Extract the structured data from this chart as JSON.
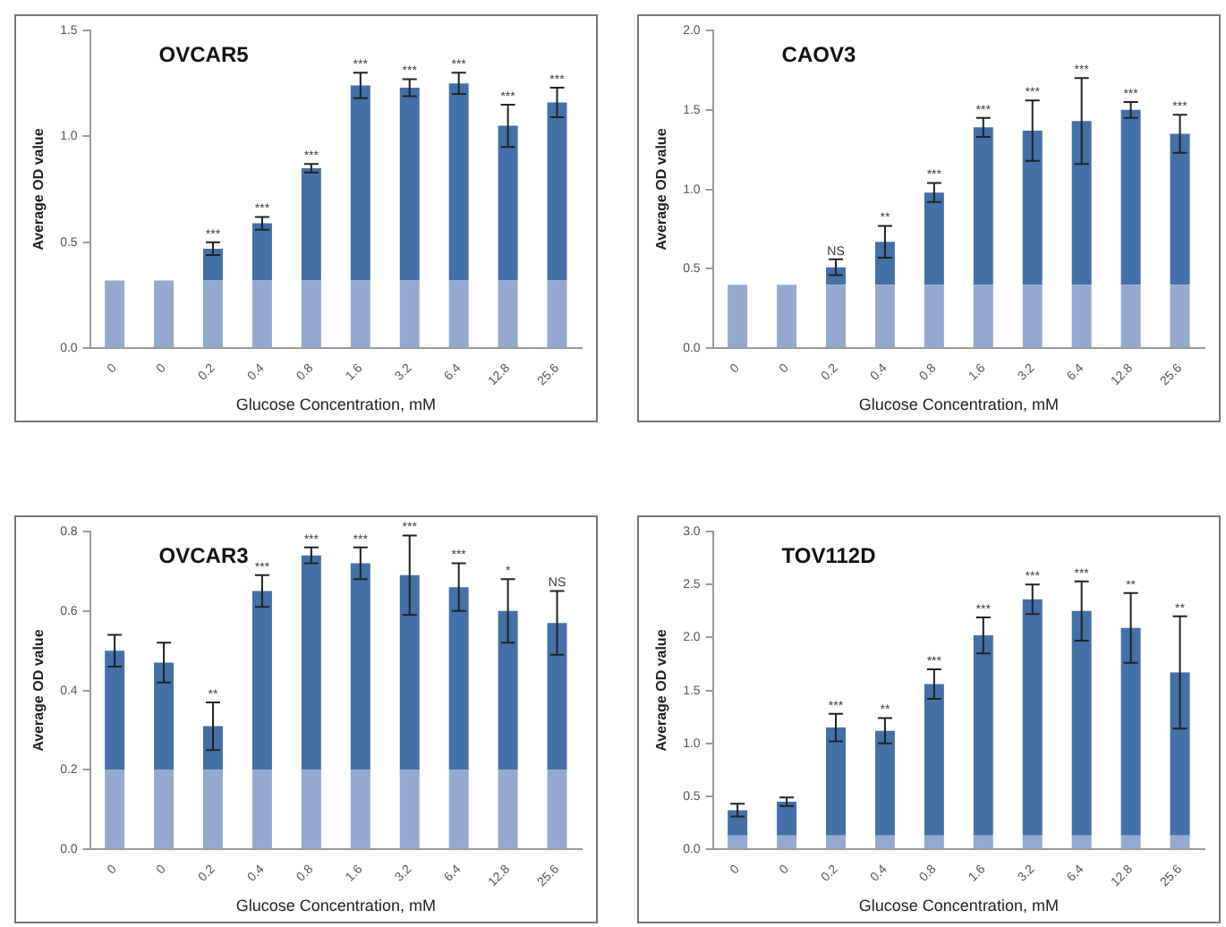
{
  "chart_data": [
    {
      "type": "bar",
      "title": "OVCAR5",
      "xlabel": "Glucose Concentration, mM",
      "ylabel": "Average OD value",
      "categories": [
        "0",
        "0",
        "0.2",
        "0.4",
        "0.8",
        "1.6",
        "3.2",
        "6.4",
        "12.8",
        "25.6"
      ],
      "stacked": true,
      "grid": false,
      "legend": false,
      "ylim": [
        0,
        1.5
      ],
      "yticks": [
        {
          "value": 0,
          "label": "0.0"
        },
        {
          "value": 0.5,
          "label": "0.5"
        },
        {
          "value": 1,
          "label": "1.0"
        },
        {
          "value": 1.5,
          "label": "1.5"
        }
      ],
      "series": [
        {
          "color": "#95a9d0",
          "values": [
            0.32,
            0.32,
            0.32,
            0.32,
            0.32,
            0.32,
            0.32,
            0.32,
            0.32,
            0.32
          ]
        },
        {
          "color": "#4470a8",
          "values": [
            0,
            0,
            0.15,
            0.27,
            0.53,
            0.92,
            0.91,
            0.93,
            0.73,
            0.84
          ],
          "errors": [
            null,
            null,
            0.03,
            0.03,
            0.02,
            0.06,
            0.04,
            0.05,
            0.1,
            0.07
          ]
        }
      ],
      "annotations": [
        {
          "text": "***",
          "x": "0.2",
          "y": 0.5
        },
        {
          "text": "***",
          "x": "0.4",
          "y": 0.62
        },
        {
          "text": "***",
          "x": "0.8",
          "y": 0.87
        },
        {
          "text": "***",
          "x": "1.6",
          "y": 1.3
        },
        {
          "text": "***",
          "x": "3.2",
          "y": 1.27
        },
        {
          "text": "***",
          "x": "6.4",
          "y": 1.3
        },
        {
          "text": "***",
          "x": "12.8",
          "y": 1.15
        },
        {
          "text": "***",
          "x": "25.6",
          "y": 1.23
        }
      ]
    },
    {
      "type": "bar",
      "title": "CAOV3",
      "xlabel": "Glucose Concentration, mM",
      "ylabel": "Average OD value",
      "categories": [
        "0",
        "0",
        "0.2",
        "0.4",
        "0.8",
        "1.6",
        "3.2",
        "6.4",
        "12.8",
        "25.6"
      ],
      "stacked": true,
      "grid": false,
      "legend": false,
      "ylim": [
        0,
        2
      ],
      "yticks": [
        {
          "value": 0,
          "label": "0.0"
        },
        {
          "value": 0.5,
          "label": "0.5"
        },
        {
          "value": 1,
          "label": "1.0"
        },
        {
          "value": 1.5,
          "label": "1.5"
        },
        {
          "value": 2,
          "label": "2.0"
        }
      ],
      "series": [
        {
          "color": "#95a9d0",
          "values": [
            0.4,
            0.4,
            0.4,
            0.4,
            0.4,
            0.4,
            0.4,
            0.4,
            0.4,
            0.4
          ]
        },
        {
          "color": "#4470a8",
          "values": [
            0,
            0,
            0.11,
            0.27,
            0.58,
            0.99,
            0.97,
            1.03,
            1.1,
            0.95
          ],
          "errors": [
            null,
            null,
            0.05,
            0.1,
            0.06,
            0.06,
            0.19,
            0.27,
            0.05,
            0.12
          ]
        }
      ],
      "annotations": [
        {
          "text": "NS",
          "x": "0.2",
          "y": 0.56
        },
        {
          "text": "**",
          "x": "0.4",
          "y": 0.77
        },
        {
          "text": "***",
          "x": "0.8",
          "y": 1.04
        },
        {
          "text": "***",
          "x": "1.6",
          "y": 1.45
        },
        {
          "text": "***",
          "x": "3.2",
          "y": 1.56
        },
        {
          "text": "***",
          "x": "6.4",
          "y": 1.7
        },
        {
          "text": "***",
          "x": "12.8",
          "y": 1.55
        },
        {
          "text": "***",
          "x": "25.6",
          "y": 1.47
        }
      ]
    },
    {
      "type": "bar",
      "title": "OVCAR3",
      "xlabel": "Glucose Concentration, mM",
      "ylabel": "Average OD value",
      "categories": [
        "0",
        "0",
        "0.2",
        "0.4",
        "0.8",
        "1.6",
        "3.2",
        "6.4",
        "12.8",
        "25.6"
      ],
      "stacked": true,
      "grid": false,
      "legend": false,
      "ylim": [
        0,
        0.8
      ],
      "yticks": [
        {
          "value": 0,
          "label": "0.0"
        },
        {
          "value": 0.2,
          "label": "0.2"
        },
        {
          "value": 0.4,
          "label": "0.4"
        },
        {
          "value": 0.6,
          "label": "0.6"
        },
        {
          "value": 0.8,
          "label": "0.8"
        }
      ],
      "series": [
        {
          "color": "#95a9d0",
          "values": [
            0.2,
            0.2,
            0.2,
            0.2,
            0.2,
            0.2,
            0.2,
            0.2,
            0.2,
            0.2
          ]
        },
        {
          "color": "#4470a8",
          "values": [
            0.3,
            0.27,
            0.11,
            0.45,
            0.54,
            0.52,
            0.49,
            0.46,
            0.4,
            0.37
          ],
          "errors": [
            0.04,
            0.05,
            0.06,
            0.04,
            0.02,
            0.04,
            0.1,
            0.06,
            0.08,
            0.08
          ]
        }
      ],
      "annotations": [
        {
          "text": "**",
          "x": "0.2",
          "y": 0.37
        },
        {
          "text": "***",
          "x": "0.4",
          "y": 0.69
        },
        {
          "text": "***",
          "x": "0.8",
          "y": 0.76
        },
        {
          "text": "***",
          "x": "1.6",
          "y": 0.76
        },
        {
          "text": "***",
          "x": "3.2",
          "y": 0.79
        },
        {
          "text": "***",
          "x": "6.4",
          "y": 0.72
        },
        {
          "text": "*",
          "x": "12.8",
          "y": 0.68
        },
        {
          "text": "NS",
          "x": "25.6",
          "y": 0.65
        }
      ]
    },
    {
      "type": "bar",
      "title": "TOV112D",
      "xlabel": "Glucose Concentration, mM",
      "ylabel": "Average OD value",
      "categories": [
        "0",
        "0",
        "0.2",
        "0.4",
        "0.8",
        "1.6",
        "3.2",
        "6.4",
        "12.8",
        "25.6"
      ],
      "stacked": true,
      "grid": false,
      "legend": false,
      "ylim": [
        0,
        3
      ],
      "yticks": [
        {
          "value": 0,
          "label": "0.0"
        },
        {
          "value": 0.5,
          "label": "0.5"
        },
        {
          "value": 1,
          "label": "1.0"
        },
        {
          "value": 1.5,
          "label": "1.5"
        },
        {
          "value": 2,
          "label": "2.0"
        },
        {
          "value": 2.5,
          "label": "2.5"
        },
        {
          "value": 3,
          "label": "3.0"
        }
      ],
      "series": [
        {
          "color": "#95a9d0",
          "values": [
            0.13,
            0.13,
            0.13,
            0.13,
            0.13,
            0.13,
            0.13,
            0.13,
            0.13,
            0.13
          ]
        },
        {
          "color": "#4470a8",
          "values": [
            0.24,
            0.32,
            1.02,
            0.99,
            1.43,
            1.89,
            2.23,
            2.12,
            1.96,
            1.54
          ],
          "errors": [
            0.06,
            0.04,
            0.13,
            0.12,
            0.14,
            0.17,
            0.14,
            0.28,
            0.33,
            0.53
          ]
        }
      ],
      "annotations": [
        {
          "text": "***",
          "x": "0.2",
          "y": 1.28
        },
        {
          "text": "**",
          "x": "0.4",
          "y": 1.24
        },
        {
          "text": "***",
          "x": "0.8",
          "y": 1.7
        },
        {
          "text": "***",
          "x": "1.6",
          "y": 2.19
        },
        {
          "text": "***",
          "x": "3.2",
          "y": 2.5
        },
        {
          "text": "***",
          "x": "6.4",
          "y": 2.53
        },
        {
          "text": "**",
          "x": "12.8",
          "y": 2.42
        },
        {
          "text": "**",
          "x": "25.6",
          "y": 2.2
        }
      ]
    }
  ]
}
